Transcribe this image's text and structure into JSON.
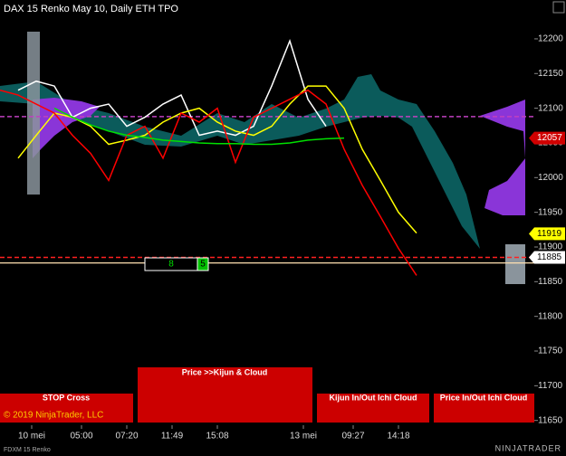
{
  "chart_data": {
    "type": "line",
    "title": "DAX 15 Renko May 10, Daily ETH TPO",
    "x": [
      0,
      4,
      8,
      12,
      16,
      20,
      24,
      28,
      32,
      36,
      40,
      44,
      48,
      52,
      56,
      60,
      64,
      68,
      72,
      76,
      80,
      84,
      88,
      92
    ],
    "xlim": [
      0,
      118
    ],
    "xticks": [
      {
        "value": 7,
        "label": "10 mei"
      },
      {
        "value": 18,
        "label": "05:00"
      },
      {
        "value": 28,
        "label": "07:20"
      },
      {
        "value": 38,
        "label": "11:49"
      },
      {
        "value": 48,
        "label": "15:08"
      },
      {
        "value": 67,
        "label": "13 mei"
      },
      {
        "value": 78,
        "label": "09:27"
      },
      {
        "value": 88,
        "label": "14:18"
      }
    ],
    "ylim": [
      11617,
      12256
    ],
    "yticks": [
      11650,
      11700,
      11750,
      11800,
      11850,
      11900,
      11950,
      12000,
      12050,
      12100,
      12150,
      12200
    ],
    "series": [
      {
        "color": "#ffffff",
        "values": [
          null,
          12126,
          12139,
          12132,
          12087,
          12100,
          12106,
          12074,
          12087,
          12106,
          12119,
          12061,
          12067,
          12061,
          12074,
          12132,
          12197,
          12113,
          12074,
          null,
          null,
          null,
          null,
          null
        ]
      },
      {
        "color": "#ffff00",
        "values": [
          null,
          12028,
          12061,
          12093,
          12087,
          12074,
          12048,
          12054,
          12061,
          12080,
          12093,
          12100,
          12080,
          12067,
          12061,
          12074,
          12106,
          12132,
          12132,
          12100,
          12041,
          11996,
          11950,
          11920
        ]
      },
      {
        "color": "#ff0000",
        "values": [
          12126,
          12119,
          12106,
          12093,
          12061,
          12035,
          11996,
          12061,
          12074,
          12028,
          12093,
          12080,
          12100,
          12022,
          12087,
          12100,
          12113,
          12126,
          12106,
          12041,
          11989,
          11944,
          11898,
          11859
        ]
      },
      {
        "color": "#00e000",
        "values": [
          null,
          null,
          null,
          12100,
          12087,
          12076,
          12067,
          12061,
          12058,
          12054,
          12052,
          12050,
          12049,
          12049,
          12048,
          12048,
          12050,
          12054,
          12056,
          12057,
          null,
          null,
          null,
          null
        ]
      }
    ],
    "levels": [
      {
        "value": 12088,
        "color": "#c040c0",
        "dash": true
      },
      {
        "value": 11885,
        "color": "#ff2020",
        "dash": true
      },
      {
        "value": 11877,
        "color": "#ffe0b0",
        "dash": false
      }
    ],
    "price_markers": [
      {
        "value": 12057,
        "color": "#d00000",
        "text_color": "#ffffff"
      },
      {
        "value": 11919,
        "color": "#ffff00",
        "text_color": "#000000"
      },
      {
        "value": 11885,
        "color": "#ffffff",
        "text_color": "#000000"
      }
    ]
  },
  "order_bar": {
    "quantity": "8",
    "count": "5"
  },
  "buttons": [
    "STOP Cross",
    "Price >>Kijun & Cloud",
    "Kijun In/Out Ichi Cloud",
    "Price In/Out Ichi Cloud"
  ],
  "copyright": "© 2019 NinjaTrader, LLC",
  "instrument": "FDXM 15 Renko",
  "brand": "NINJATRADER"
}
